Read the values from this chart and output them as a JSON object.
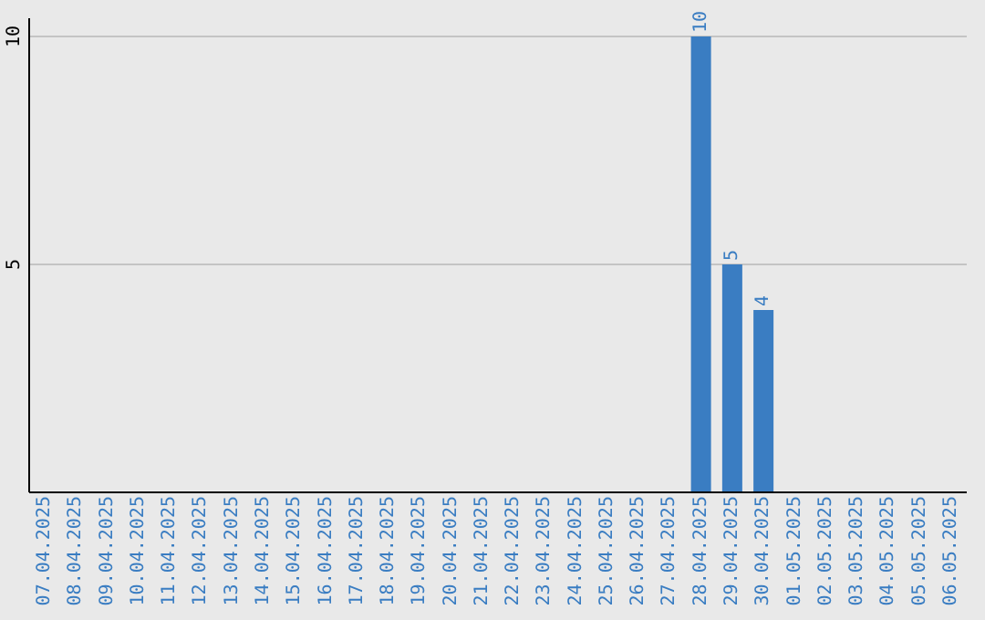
{
  "chart_data": {
    "type": "bar",
    "categories": [
      "07.04.2025",
      "08.04.2025",
      "09.04.2025",
      "10.04.2025",
      "11.04.2025",
      "12.04.2025",
      "13.04.2025",
      "14.04.2025",
      "15.04.2025",
      "16.04.2025",
      "17.04.2025",
      "18.04.2025",
      "19.04.2025",
      "20.04.2025",
      "21.04.2025",
      "22.04.2025",
      "23.04.2025",
      "24.04.2025",
      "25.04.2025",
      "26.04.2025",
      "27.04.2025",
      "28.04.2025",
      "29.04.2025",
      "30.04.2025",
      "01.05.2025",
      "02.05.2025",
      "03.05.2025",
      "04.05.2025",
      "05.05.2025",
      "06.05.2025"
    ],
    "values": [
      0,
      0,
      0,
      0,
      0,
      0,
      0,
      0,
      0,
      0,
      0,
      0,
      0,
      0,
      0,
      0,
      0,
      0,
      0,
      0,
      0,
      10,
      5,
      4,
      0,
      0,
      0,
      0,
      0,
      0
    ],
    "value_labels": [
      null,
      null,
      null,
      null,
      null,
      null,
      null,
      null,
      null,
      null,
      null,
      null,
      null,
      null,
      null,
      null,
      null,
      null,
      null,
      null,
      null,
      "10",
      "5",
      "4",
      null,
      null,
      null,
      null,
      null,
      null
    ],
    "color": "#3a7dc2",
    "ylim": [
      0,
      10.4
    ],
    "yticks": [
      5,
      10
    ],
    "grid": "y"
  }
}
